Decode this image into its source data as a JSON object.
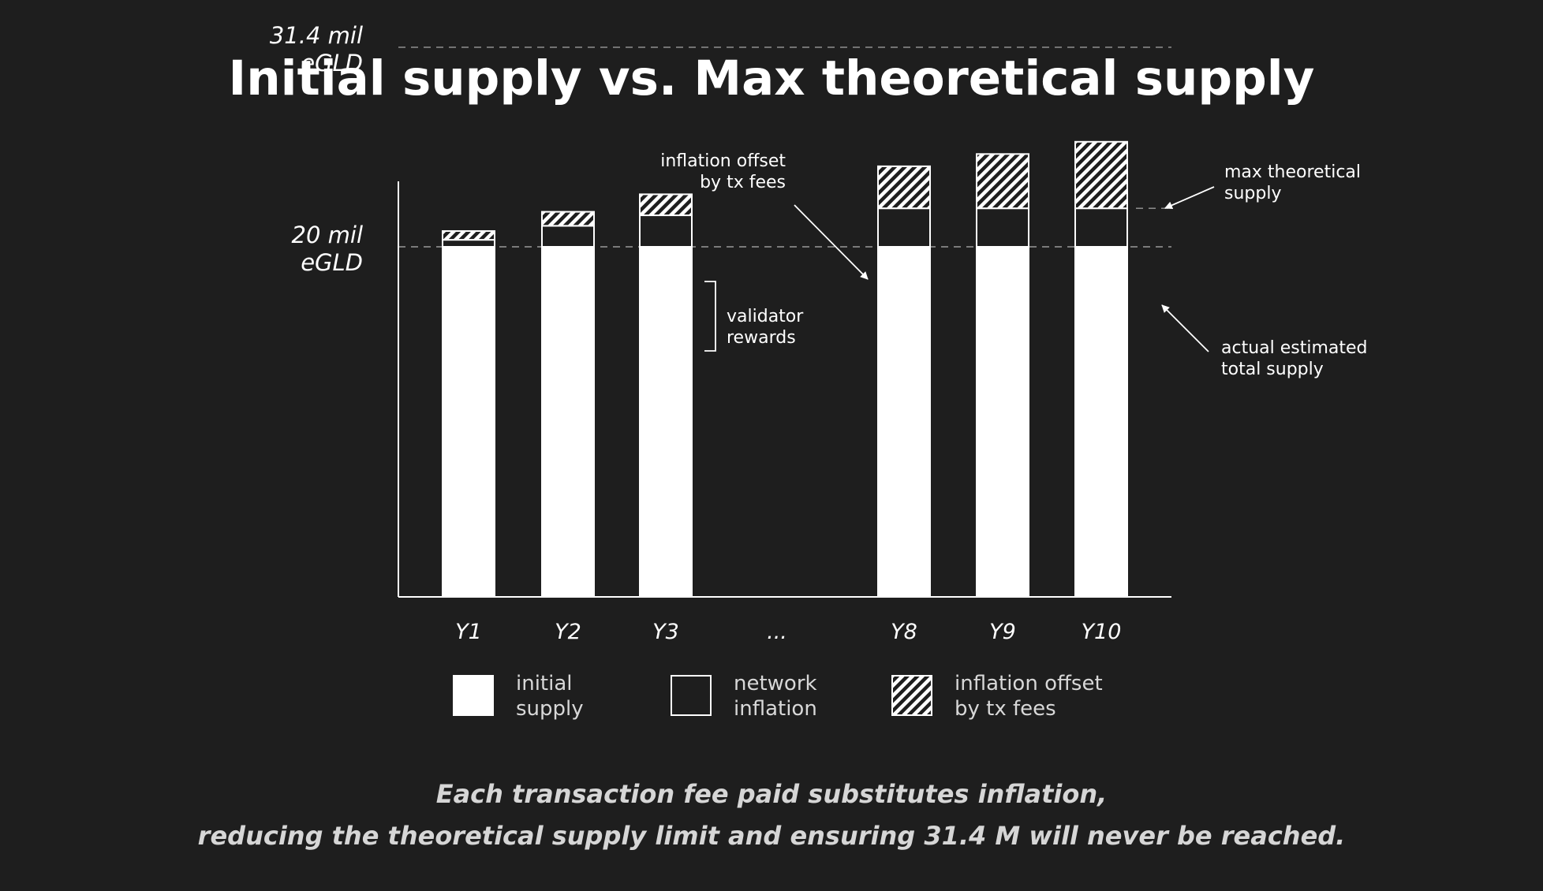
{
  "chart_data": {
    "type": "bar",
    "title": "Initial supply vs. Max theoretical supply",
    "categories": [
      "Y1",
      "Y2",
      "Y3",
      "...",
      "Y8",
      "Y9",
      "Y10"
    ],
    "stacked": true,
    "series": [
      {
        "name": "initial supply",
        "values": [
          20,
          20,
          20,
          null,
          20,
          20,
          20
        ]
      },
      {
        "name": "network inflation",
        "values": [
          0.4,
          1.2,
          1.8,
          null,
          2.2,
          2.2,
          2.2
        ]
      },
      {
        "name": "inflation offset by tx fees",
        "values": [
          0.5,
          0.8,
          1.2,
          null,
          2.4,
          3.1,
          3.8
        ]
      }
    ],
    "y_tick_labels": [
      {
        "value": 31.4,
        "lines": [
          "31.4 mil",
          "eGLD"
        ]
      },
      {
        "value": 20,
        "lines": [
          "20 mil",
          "eGLD"
        ]
      }
    ],
    "reference_lines": [
      {
        "value": 31.4
      },
      {
        "value": 20
      },
      {
        "value": 22.2
      }
    ],
    "annotations": {
      "offset": [
        "inflation offset",
        "by tx fees"
      ],
      "validator": [
        "validator",
        "rewards"
      ],
      "max": [
        "max theoretical",
        "supply"
      ],
      "actual": [
        "actual estimated",
        "total supply"
      ]
    },
    "legend": [
      {
        "swatch": "solid",
        "lines": [
          "initial",
          "supply"
        ]
      },
      {
        "swatch": "outline",
        "lines": [
          "network",
          "inflation"
        ]
      },
      {
        "swatch": "hatch",
        "lines": [
          "inflation offset",
          "by tx fees"
        ]
      }
    ],
    "footer": [
      "Each transaction fee paid substitutes inflation,",
      "reducing the theoretical supply limit and ensuring 31.4 M will never be reached."
    ],
    "colors": {
      "background": "#1e1e1e",
      "bar": "#ffffff",
      "text": "#ffffff",
      "muted": "#d6d6d6",
      "dashed": "#9a9a9a"
    }
  }
}
